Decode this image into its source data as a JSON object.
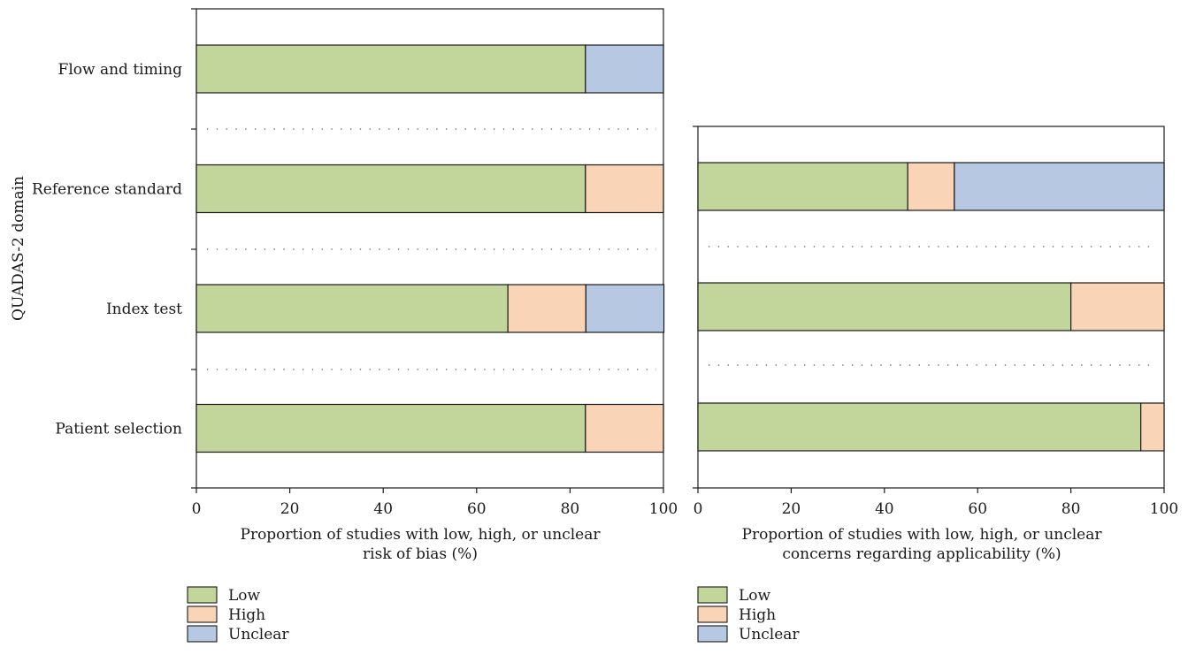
{
  "chart_data": [
    {
      "type": "bar",
      "orientation": "horizontal",
      "stacked": true,
      "categories": [
        "Flow and timing",
        "Reference standard",
        "Index test",
        "Patient selection"
      ],
      "series": [
        {
          "name": "Low",
          "values": [
            83.3,
            83.3,
            66.7,
            83.3
          ]
        },
        {
          "name": "High",
          "values": [
            0,
            16.7,
            16.7,
            16.7
          ]
        },
        {
          "name": "Unclear",
          "values": [
            16.7,
            0,
            16.7,
            0
          ]
        }
      ],
      "xticks": [
        "0",
        "20",
        "40",
        "60",
        "80",
        "100"
      ],
      "xlim": [
        0,
        100
      ],
      "xlabel_lines": [
        "Proportion of studies with low, high, or unclear",
        "risk of bias (%)"
      ],
      "ylabel": "QUADAS-2 domain",
      "legend": [
        "Low",
        "High",
        "Unclear"
      ]
    },
    {
      "type": "bar",
      "orientation": "horizontal",
      "stacked": true,
      "categories": [
        "Reference standard",
        "Index test",
        "Patient selection"
      ],
      "series": [
        {
          "name": "Low",
          "values": [
            45,
            80,
            95
          ]
        },
        {
          "name": "High",
          "values": [
            10,
            20,
            5
          ]
        },
        {
          "name": "Unclear",
          "values": [
            45,
            0,
            0
          ]
        }
      ],
      "xticks": [
        "0",
        "20",
        "40",
        "60",
        "80",
        "100"
      ],
      "xlim": [
        0,
        100
      ],
      "xlabel_lines": [
        "Proportion of studies with low, high, or unclear",
        "concerns regarding applicability (%)"
      ],
      "legend": [
        "Low",
        "High",
        "Unclear"
      ]
    }
  ],
  "colors": {
    "Low": "#c2d59b",
    "High": "#fad4b7",
    "Unclear": "#b7c9e2"
  }
}
